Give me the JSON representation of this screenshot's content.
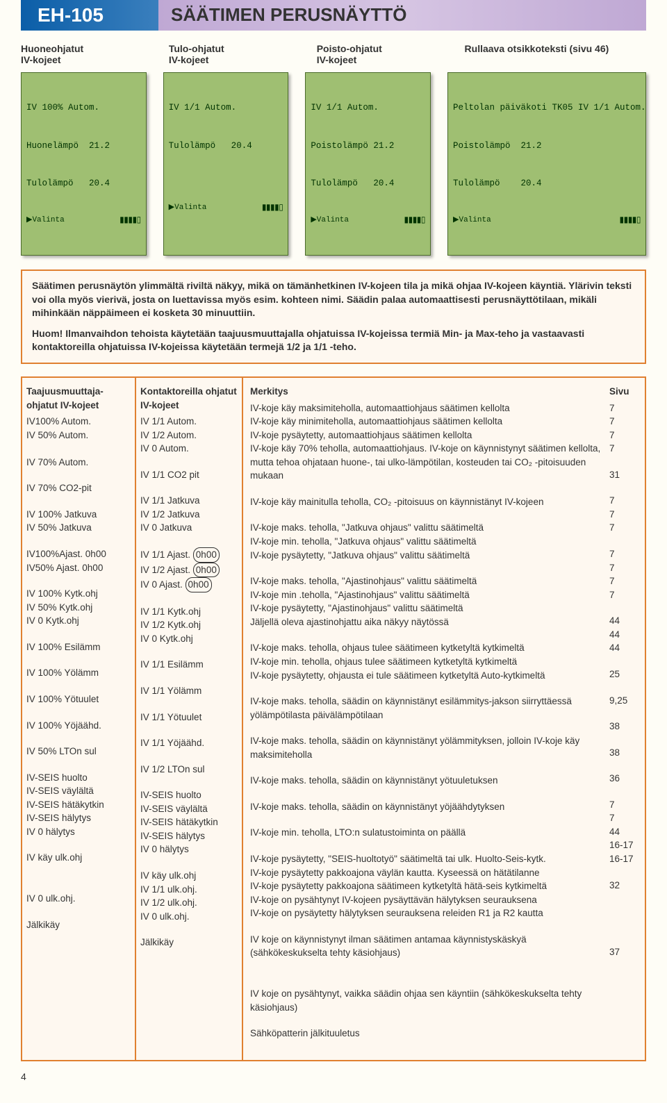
{
  "header": {
    "left": "EH-105",
    "right": "SÄÄTIMEN PERUSNÄYTTÖ"
  },
  "colLabels": [
    "Huoneohjatut\nIV-kojeet",
    "Tulo-ohjatut\nIV-kojeet",
    "Poisto-ohjatut\nIV-kojeet",
    "Rullaava otsikkoteksti (sivu 46)"
  ],
  "lcds": [
    {
      "l1": "IV 100% Autom.",
      "l2": "Huonelämpö  21.2",
      "l3": "Tulolämpö   20.4",
      "l4a": "▶Valinta",
      "l4b": "▮▮▮▮▯"
    },
    {
      "l1": "IV 1/1 Autom.",
      "l2": "Tulolämpö   20.4",
      "l3": "",
      "l4a": "▶Valinta",
      "l4b": "▮▮▮▮▯"
    },
    {
      "l1": "IV 1/1 Autom.",
      "l2": "Poistolämpö 21.2",
      "l3": "Tulolämpö   20.4",
      "l4a": "▶Valinta",
      "l4b": "▮▮▮▮▯"
    },
    {
      "l1": "Peltolan päiväkoti TK05 IV 1/1 Autom.",
      "l2": "Poistolämpö  21.2",
      "l3": "Tulolämpö    20.4",
      "l4a": "▶Valinta",
      "l4b": "▮▮▮▮▯"
    }
  ],
  "blurb": {
    "p1": "Säätimen perusnäytön ylimmältä riviltä näkyy, mikä on tämänhetkinen IV-kojeen tila ja mikä ohjaa IV-kojeen käyntiä. Ylärivin teksti voi olla myös vierivä, josta on luettavissa myös esim. kohteen nimi. Säädin palaa automaattisesti perusnäyttötilaan, mikäli mihinkään näppäimeen ei kosketa 30 minuuttiin.",
    "p2": "Huom! Ilmanvaihdon tehoista käytetään taajuusmuuttajalla ohjatuissa IV-kojeissa termiä Min- ja Max-teho ja vastaavasti kontaktoreilla ohjatuissa IV-kojeissa käytetään termejä 1/2 ja 1/1 -teho."
  },
  "theads": {
    "c1": "Taajuusmuuttaja-ohjatut IV-kojeet",
    "c2": "Kontaktoreilla ohjatut IV-kojeet",
    "c3": "Merkitys",
    "c4": "Sivu"
  },
  "rows": [
    {
      "c1": [
        "IV100% Autom.",
        "IV 50%  Autom.",
        "",
        "IV 70% Autom."
      ],
      "c2": [
        "IV 1/1 Autom.",
        "IV 1/2 Autom.",
        "IV  0  Autom."
      ],
      "c3": [
        "IV-koje käy maksimiteholla,  automaattiohjaus säätimen kellolta",
        "IV-koje käy minimiteholla, automaattiohjaus säätimen kellolta",
        "IV-koje pysäytetty, automaattiohjaus säätimen kellolta",
        "IV-koje käy 70% teholla, automaattiohjaus. IV-koje on käynnistynyt säätimen kellolta, mutta tehoa ohjataan huone-, tai ulko-lämpötilan,  kosteuden tai CO₂ -pitoisuuden mukaan"
      ],
      "c4": [
        "7",
        "7",
        "7",
        "7"
      ]
    },
    {
      "c1": [
        "IV 70% CO2-pit"
      ],
      "c2": [
        "IV 1/1 CO2 pit"
      ],
      "c3": [
        "IV-koje käy mainitulla teholla, CO₂ -pitoisuus on käynnistänyt IV-kojeen"
      ],
      "c4": [
        "31"
      ]
    },
    {
      "c1": [
        "IV 100% Jatkuva",
        "IV 50%   Jatkuva"
      ],
      "c2": [
        "IV 1/1 Jatkuva",
        "IV 1/2 Jatkuva",
        "IV  0  Jatkuva"
      ],
      "c3": [
        "IV-koje maks. teholla, \"Jatkuva ohjaus\" valittu säätimeltä",
        "IV-koje min. teholla, \"Jatkuva ohjaus\" valittu säätimeltä",
        "IV-koje pysäytetty, \"Jatkuva ohjaus\" valittu säätimeltä"
      ],
      "c4": [
        "7",
        "7",
        "7"
      ]
    },
    {
      "c1": [
        "IV100%Ajast. 0h00",
        "IV50%  Ajast. 0h00"
      ],
      "c2circled": [
        "IV 1/1 Ajast. 0h00",
        "IV 1/2 Ajast. 0h00",
        "IV  0  Ajast. 0h00"
      ],
      "c3": [
        "IV-koje maks. teholla, \"Ajastinohjaus\" valittu säätimeltä",
        "IV-koje min .teholla, \"Ajastinohjaus\" valittu säätimeltä",
        "IV-koje pysäytetty, \"Ajastinohjaus\" valittu säätimeltä",
        "Jäljellä oleva ajastinohjattu aika näkyy näytössä"
      ],
      "c4": [
        "7",
        "7",
        "7",
        "7"
      ]
    },
    {
      "c1": [
        "IV 100% Kytk.ohj",
        "IV 50%  Kytk.ohj",
        "IV  0 Kytk.ohj"
      ],
      "c2": [
        "IV 1/1 Kytk.ohj",
        "IV 1/2 Kytk.ohj",
        "IV  0  Kytk.ohj"
      ],
      "c3": [
        "IV-koje maks. teholla, ohjaus tulee säätimeen kytketyltä kytkimeltä",
        "IV-koje min. teholla, ohjaus tulee säätimeen kytketyltä kytkimeltä",
        "IV-koje pysäytetty, ohjausta ei tule säätimeen kytketyltä Auto-kytkimeltä"
      ],
      "c4": [
        "44",
        "44",
        "44"
      ]
    },
    {
      "c1": [
        "IV 100% Esilämm"
      ],
      "c2": [
        "IV 1/1 Esilämm"
      ],
      "c3": [
        "IV-koje maks. teholla, säädin on käynnistänyt  esilämmitys-jakson siirryttäessä yölämpötilasta päivälämpötilaan"
      ],
      "c4": [
        "25"
      ]
    },
    {
      "c1": [
        "IV 100%  Yölämm"
      ],
      "c2": [
        "IV 1/1  Yölämm"
      ],
      "c3": [
        "IV-koje maks. teholla, säädin on käynnistänyt  yölämmityksen, jolloin IV-koje käy maksimiteholla"
      ],
      "c4": [
        "9,25"
      ]
    },
    {
      "c1": [
        "IV 100% Yötuulet"
      ],
      "c2": [
        "IV 1/1  Yötuulet"
      ],
      "c3": [
        "IV-koje maks. teholla, säädin on käynnistänyt yötuuletuksen"
      ],
      "c4": [
        "38"
      ]
    },
    {
      "c1": [
        "IV 100% Yöjäähd."
      ],
      "c2": [
        "IV 1/1  Yöjäähd."
      ],
      "c3": [
        "IV-koje maks. teholla, säädin on käynnistänyt yöjäähdytyksen"
      ],
      "c4": [
        "38"
      ]
    },
    {
      "c1": [
        "IV 50%  LTOn sul"
      ],
      "c2": [
        "IV 1/2 LTOn sul"
      ],
      "c3": [
        "IV-koje min. teholla, LTO:n sulatustoiminta on päällä"
      ],
      "c4": [
        "36"
      ]
    },
    {
      "c1": [
        "IV-SEIS huolto",
        "IV-SEIS väylältä",
        "IV-SEIS hätäkytkin",
        "IV-SEIS hälytys",
        "IV 0 hälytys"
      ],
      "c2": [
        "IV-SEIS huolto",
        "IV-SEIS väylältä",
        "IV-SEIS hätäkytkin",
        "IV-SEIS hälytys",
        "IV 0 hälytys"
      ],
      "c3": [
        "IV-koje pysäytetty, \"SEIS-huoltotyö\" säätimeltä tai ulk. Huolto-Seis-kytk.",
        "IV-koje pysäytetty pakkoajona väylän kautta. Kyseessä on hätätilanne",
        "IV-koje pysäytetty pakkoajona säätimeen kytketyltä hätä-seis kytkimeltä",
        "IV-koje on pysähtynyt IV-kojeen pysäyttävän hälytyksen seurauksena",
        "IV-koje on pysäytetty hälytyksen seurauksena  releiden R1 ja R2 kautta"
      ],
      "c4": [
        "7",
        "7",
        "44",
        "16-17",
        "16-17"
      ]
    },
    {
      "c1": [
        "IV käy ulk.ohj",
        "",
        "",
        "IV 0 ulk.ohj."
      ],
      "c2": [
        "IV käy ulk.ohj",
        "IV 1/1 ulk.ohj.",
        "IV 1/2 ulk.ohj.",
        "IV 0 ulk.ohj."
      ],
      "c3": [
        "IV koje on käynnistynyt ilman säätimen antamaa käynnistyskäskyä (sähkökeskukselta tehty käsiohjaus)",
        "",
        "",
        "IV koje on pysähtynyt, vaikka säädin ohjaa sen käyntiin (sähkökeskukselta tehty käsiohjaus)"
      ],
      "c4": [
        "32"
      ]
    },
    {
      "c1": [
        "Jälkikäy"
      ],
      "c2": [
        "Jälkikäy"
      ],
      "c3": [
        "Sähköpatterin jälkituuletus"
      ],
      "c4": [
        "37"
      ]
    }
  ],
  "pageNum": "4",
  "colors": {
    "outline": "#e08030",
    "lcdBg": "#9fbf72",
    "headerLeft": "#0b5ea8",
    "headerRight": "#bfa8d4",
    "pageBg": "#fefdf6"
  }
}
